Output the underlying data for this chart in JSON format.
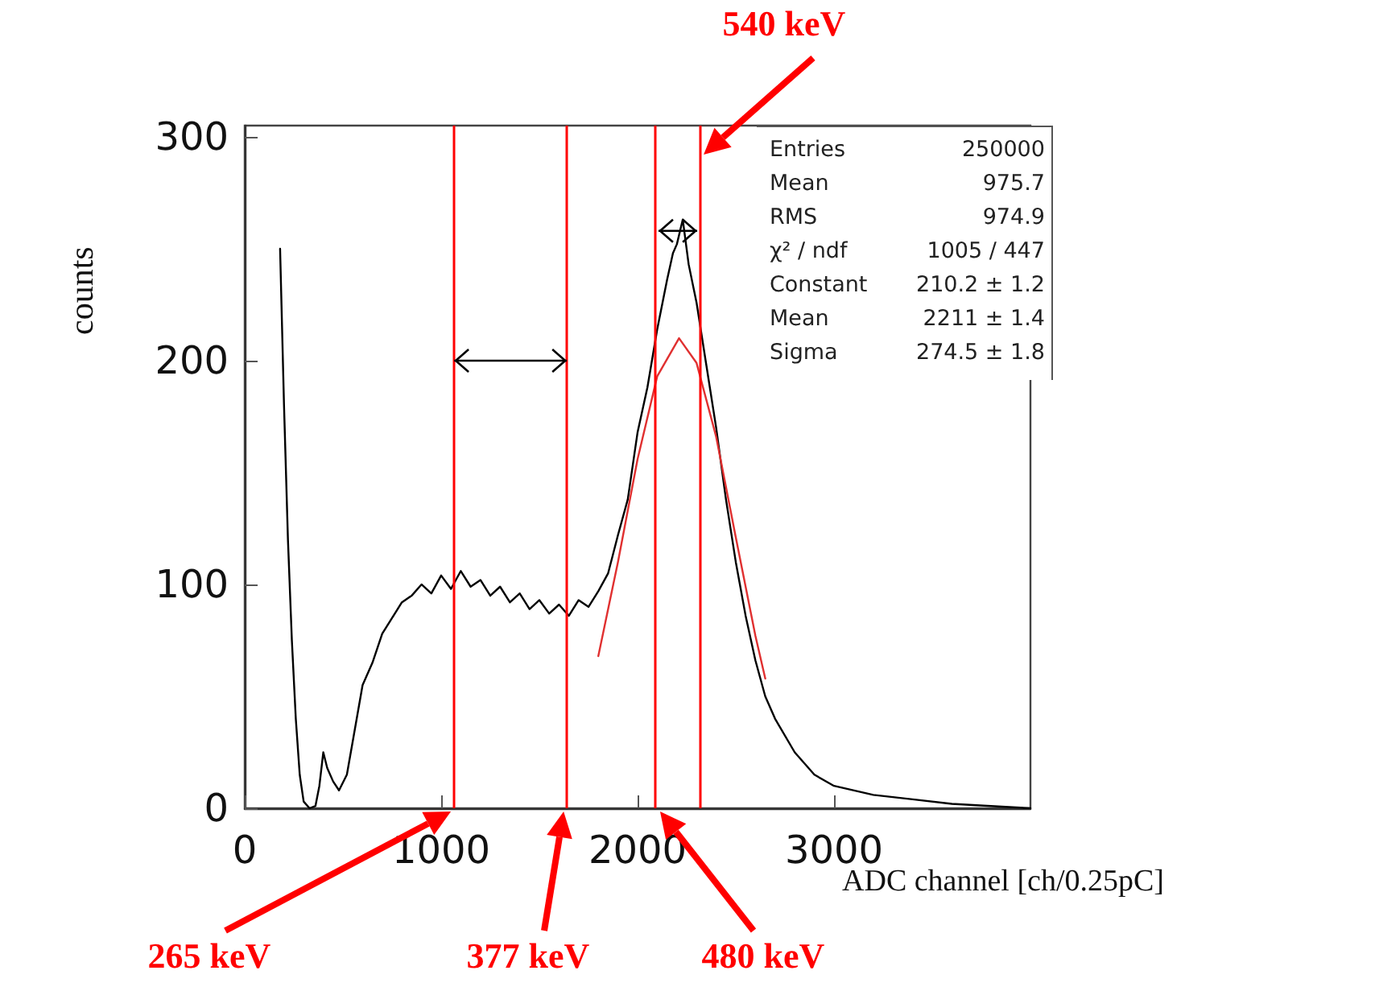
{
  "chart_data": {
    "type": "line",
    "xlabel": "ADC channel [ch/0.25pC]",
    "ylabel": "counts",
    "xlim": [
      0,
      4000
    ],
    "xticks": [
      0,
      1000,
      2000,
      3000
    ],
    "ylim": [
      0,
      305
    ],
    "yticks": [
      0,
      100,
      200,
      300
    ],
    "grid": false,
    "marker": "none",
    "line_style": "solid",
    "series": [
      {
        "color": "#000000",
        "x": [
          180,
          200,
          220,
          240,
          260,
          280,
          300,
          330,
          360,
          380,
          400,
          420,
          450,
          480,
          520,
          560,
          600,
          650,
          700,
          750,
          800,
          850,
          900,
          950,
          1000,
          1050,
          1100,
          1150,
          1200,
          1250,
          1300,
          1350,
          1400,
          1450,
          1500,
          1550,
          1600,
          1650,
          1700,
          1750,
          1800,
          1850,
          1900,
          1950,
          2000,
          2050,
          2100,
          2150,
          2180,
          2200,
          2230,
          2260,
          2300,
          2350,
          2400,
          2450,
          2500,
          2550,
          2600,
          2650,
          2700,
          2800,
          2900,
          3000,
          3200,
          3400,
          3600,
          3800,
          4000
        ],
        "values": [
          250,
          180,
          120,
          75,
          40,
          15,
          3,
          0,
          1,
          10,
          25,
          18,
          12,
          8,
          15,
          35,
          55,
          65,
          78,
          85,
          92,
          95,
          100,
          96,
          104,
          98,
          106,
          99,
          102,
          95,
          99,
          92,
          96,
          89,
          93,
          87,
          91,
          86,
          93,
          90,
          97,
          105,
          122,
          138,
          168,
          188,
          214,
          236,
          248,
          252,
          263,
          243,
          226,
          198,
          170,
          138,
          110,
          86,
          66,
          50,
          40,
          25,
          15,
          10,
          6,
          4,
          2,
          1,
          0
        ]
      },
      {
        "color": "#e03030",
        "x": [
          1800,
          1900,
          2000,
          2100,
          2211,
          2300,
          2400,
          2500,
          2600,
          2650
        ],
        "values": [
          68,
          110,
          156,
          193,
          210,
          199,
          166,
          121,
          77,
          58
        ]
      }
    ],
    "ref_lines": [
      {
        "axis": "x",
        "value": 1066,
        "label": "265 keV",
        "color": "#ff0000"
      },
      {
        "axis": "x",
        "value": 1640,
        "label": "377 keV",
        "color": "#ff0000"
      },
      {
        "axis": "x",
        "value": 2090,
        "label": "480 keV",
        "color": "#ff0000"
      },
      {
        "axis": "x",
        "value": 2320,
        "label": "540 keV",
        "color": "#ff0000"
      }
    ],
    "annotations": [
      "Entries",
      "250000",
      "Mean",
      "975.7",
      "RMS",
      "974.9",
      "χ² / ndf",
      "1005 / 447",
      "Constant",
      "210.2 ± 1.2",
      "Mean",
      "2211 ± 1.4",
      "Sigma",
      "274.5 ± 1.8"
    ]
  }
}
